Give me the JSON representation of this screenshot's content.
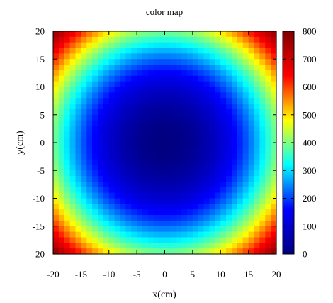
{
  "chart_data": {
    "type": "heatmap",
    "title": "color map",
    "xlabel": "x(cm)",
    "ylabel": "y(cm)",
    "xlim": [
      -20,
      20
    ],
    "ylim": [
      -20,
      20
    ],
    "x_ticks": [
      "-20",
      "-15",
      "-10",
      "-5",
      "0",
      "5",
      "10",
      "15",
      "20"
    ],
    "y_ticks": [
      "-20",
      "-15",
      "-10",
      "-5",
      "0",
      "5",
      "10",
      "15",
      "20"
    ],
    "x_tick_values": [
      -20,
      -15,
      -10,
      -5,
      0,
      5,
      10,
      15,
      20
    ],
    "y_tick_values": [
      -20,
      -15,
      -10,
      -5,
      0,
      5,
      10,
      15,
      20
    ],
    "colorbar": {
      "range": [
        0,
        800
      ],
      "ticks": [
        "0",
        "100",
        "200",
        "300",
        "400",
        "500",
        "600",
        "700",
        "800"
      ],
      "tick_values": [
        0,
        100,
        200,
        300,
        400,
        500,
        600,
        700,
        800
      ]
    },
    "grid": {
      "nx": 40,
      "ny": 40,
      "x_range": [
        -20,
        20
      ],
      "y_range": [
        -20,
        20
      ],
      "function": "z = x^2 + y^2"
    },
    "colormap": [
      "#000080",
      "#0000ff",
      "#00ffff",
      "#ffff00",
      "#ff0000",
      "#800000"
    ]
  }
}
